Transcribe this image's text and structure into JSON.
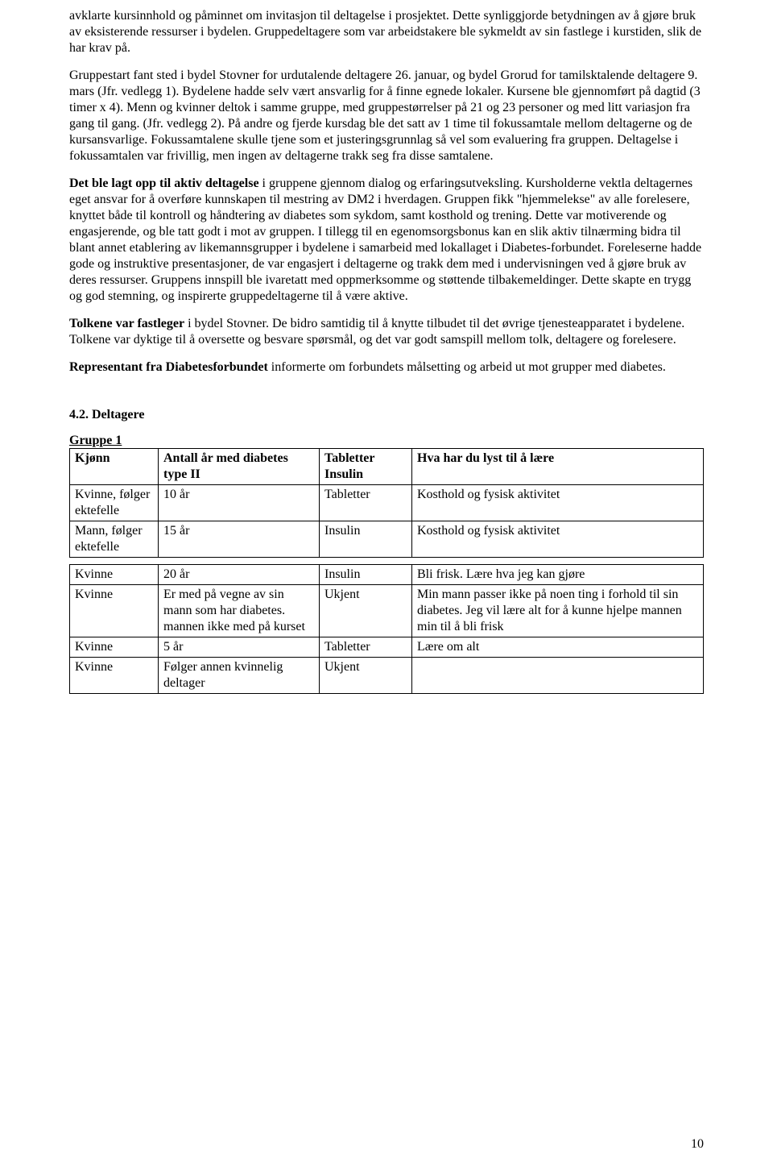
{
  "p1_part1": "avklarte kursinnhold og påminnet om invitasjon til deltagelse i prosjektet. Dette synliggjorde betydningen av å gjøre bruk av eksisterende ressurser i bydelen. Gruppedeltagere som var arbeidstakere ble sykmeldt av sin fastlege i kurstiden, slik de har krav på.",
  "p2": "Gruppestart fant sted i bydel Stovner for urdutalende deltagere 26. januar, og bydel Grorud for tamilsktalende deltagere 9. mars (Jfr. vedlegg 1). Bydelene hadde selv vært ansvarlig for å finne egnede lokaler. Kursene ble gjennomført på dagtid (3 timer x 4). Menn og kvinner deltok i samme gruppe, med gruppestørrelser på 21 og 23 personer og med litt variasjon fra gang til gang. (Jfr. vedlegg 2). På andre og fjerde kursdag ble det satt av 1 time til fokussamtale mellom deltagerne og de kursansvarlige. Fokussamtalene skulle tjene som et justeringsgrunnlag så vel som evaluering fra gruppen. Deltagelse i fokussamtalen var frivillig, men ingen av deltagerne trakk seg fra disse samtalene.",
  "p3_lead": "Det ble lagt opp til aktiv deltagelse",
  "p3_rest": " i gruppene gjennom dialog og erfaringsutveksling. Kursholderne vektla deltagernes eget ansvar for å overføre kunnskapen til mestring av DM2 i hverdagen. Gruppen fikk \"hjemmelekse\" av alle forelesere, knyttet både til kontroll og håndtering av diabetes som sykdom, samt kosthold og trening. Dette var motiverende og engasjerende, og ble tatt godt i mot av gruppen. I tillegg til en egenomsorgsbonus kan en slik aktiv tilnærming bidra til blant annet etablering av likemannsgrupper i bydelene i samarbeid med lokallaget i Diabetes-forbundet. Foreleserne hadde gode og instruktive presentasjoner, de var engasjert i deltagerne og trakk dem med i undervisningen ved å gjøre bruk av deres ressurser. Gruppens innspill ble ivaretatt med oppmerksomme og støttende tilbakemeldinger. Dette skapte en trygg og god stemning, og inspirerte gruppedeltagerne til å være aktive.",
  "p4_lead": "Tolkene var fastleger",
  "p4_rest": " i bydel Stovner. De bidro samtidig til å knytte tilbudet til det øvrige tjenesteapparatet i bydelene. Tolkene var dyktige til å oversette og besvare spørsmål, og det var godt samspill mellom tolk, deltagere og forelesere.",
  "p5_lead": "Representant fra Diabetesforbundet",
  "p5_rest": " informerte om forbundets målsetting og arbeid ut mot grupper med diabetes.",
  "section_heading": "4.2. Deltagere",
  "group_heading": "Gruppe 1",
  "table1": {
    "headers": {
      "kjonn": "Kjønn",
      "aar": "Antall år med diabetes type II",
      "tab": "Tabletter Insulin",
      "laere": "Hva har du lyst til å lære"
    },
    "rows": [
      {
        "kjonn": "Kvinne, følger ektefelle",
        "aar": "10 år",
        "tab": "Tabletter",
        "laere": "Kosthold og fysisk aktivitet"
      },
      {
        "kjonn": "Mann, følger ektefelle",
        "aar": "15 år",
        "tab": "Insulin",
        "laere": "Kosthold og fysisk aktivitet"
      }
    ]
  },
  "table2": {
    "rows": [
      {
        "kjonn": "Kvinne",
        "aar": "20 år",
        "tab": "Insulin",
        "laere": "Bli frisk. Lære hva jeg kan gjøre"
      },
      {
        "kjonn": "Kvinne",
        "aar": "Er med på vegne av sin mann som har diabetes. mannen ikke med på kurset",
        "tab": "Ukjent",
        "laere": "Min mann passer ikke på noen ting i forhold til sin diabetes. Jeg vil lære alt for å kunne hjelpe mannen min til å bli frisk"
      },
      {
        "kjonn": "Kvinne",
        "aar": "5 år",
        "tab": "Tabletter",
        "laere": "Lære om alt"
      },
      {
        "kjonn": "Kvinne",
        "aar": "Følger annen kvinnelig deltager",
        "tab": "Ukjent",
        "laere": ""
      }
    ]
  },
  "page_number": "10"
}
